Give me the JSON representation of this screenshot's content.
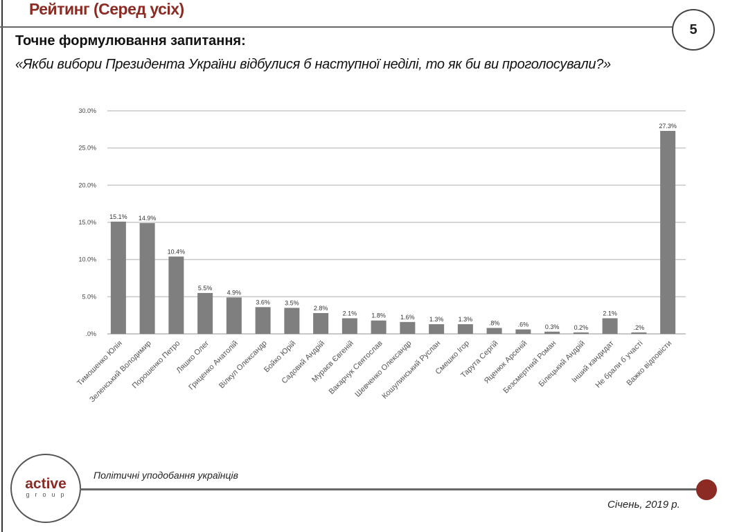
{
  "header": {
    "title": "Рейтинг (Серед усіх)",
    "page_number": "5"
  },
  "question": {
    "label": "Точне формулювання запитання:",
    "text": "«Якби вибори Президента України відбулися б наступної неділі, то як би ви проголосували?»"
  },
  "chart_data": {
    "type": "bar",
    "categories": [
      "Тимошенко Юлія",
      "Зеленський Володимир",
      "Порошенко Петро",
      "Ляшко Олег",
      "Гриценко Анатолій",
      "Вілкул Олександр",
      "Бойко Юрій",
      "Садовий Андрій",
      "Мураєв Євгеній",
      "Вакарчук Святослав",
      "Шевченко Олександр",
      "Кошулинський Руслан",
      "Смешко Ігор",
      "Тарута Сергій",
      "Яценюк Арсеній",
      "Безсмертний Роман",
      "Білецький Андрій",
      "Інший кандидат",
      "Не брали б участі",
      "Важко відповісти"
    ],
    "values": [
      15.1,
      14.9,
      10.4,
      5.5,
      4.9,
      3.6,
      3.5,
      2.8,
      2.1,
      1.8,
      1.6,
      1.3,
      1.3,
      0.8,
      0.6,
      0.3,
      0.2,
      2.1,
      0.2,
      27.3
    ],
    "data_labels": [
      "15.1%",
      "14.9%",
      "10.4%",
      "5.5%",
      "4.9%",
      "3.6%",
      "3.5%",
      "2.8%",
      "2.1%",
      "1.8%",
      "1.6%",
      "1.3%",
      "1.3%",
      ".8%",
      ".6%",
      "0.3%",
      "0.2%",
      "2.1%",
      ".2%",
      "27.3%"
    ],
    "yticks": [
      ".0%",
      "5.0%",
      "10.0%",
      "15.0%",
      "20.0%",
      "25.0%",
      "30.0%"
    ],
    "ylim": [
      0,
      30
    ],
    "grid": true,
    "bar_color": "#7f7f7f"
  },
  "footer": {
    "caption": "Політичні уподобання українців",
    "date": "Січень, 2019 р.",
    "logo_main": "active",
    "logo_sub": "group"
  },
  "colors": {
    "accent": "#8b2b23"
  }
}
